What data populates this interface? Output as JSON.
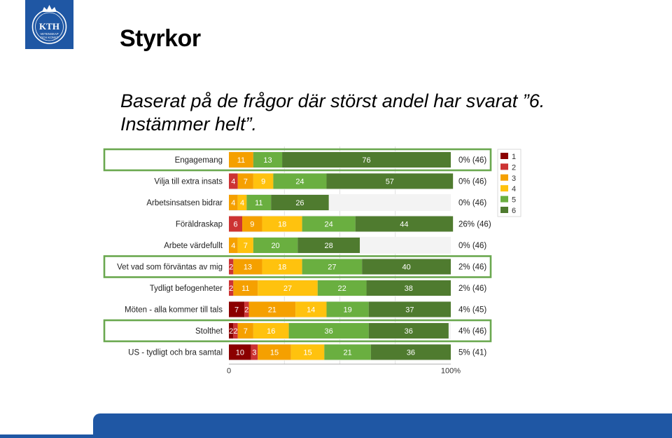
{
  "header": {
    "title": "Styrkor",
    "subtitle_line1": "Baserat på de frågor där störst andel har svarat ”6.",
    "subtitle_line2": "Instämmer helt”.",
    "logo_text": "KTH",
    "logo_subtext_1": "VETENSKAP",
    "logo_subtext_2": "OCH KONST"
  },
  "colors": {
    "brand_blue": "#1f57a4",
    "highlight_green": "#6aa84f",
    "series": [
      "#8b0000",
      "#cc3333",
      "#f5a000",
      "#ffc20e",
      "#6aaf40",
      "#4f7b2f"
    ]
  },
  "chart_data": {
    "type": "bar",
    "orientation": "horizontal",
    "stacked": true,
    "categories": [
      "Engagemang",
      "Vilja till extra insats",
      "Arbetsinsatsen bidrar",
      "Föräldraskap",
      "Arbete värdefullt",
      "Vet vad som förväntas av mig",
      "Tydligt befogenheter",
      "Möten - alla kommer till tals",
      "Stolthet",
      "US - tydligt och bra samtal"
    ],
    "series": [
      {
        "name": "1",
        "values": [
          0,
          0,
          0,
          0,
          0,
          0,
          0,
          7,
          2,
          10
        ]
      },
      {
        "name": "2",
        "values": [
          0,
          4,
          0,
          6,
          0,
          2,
          2,
          2,
          2,
          3
        ]
      },
      {
        "name": "3",
        "values": [
          11,
          7,
          4,
          9,
          4,
          13,
          11,
          21,
          7,
          15
        ]
      },
      {
        "name": "4",
        "values": [
          0,
          9,
          4,
          18,
          7,
          18,
          27,
          14,
          16,
          15
        ]
      },
      {
        "name": "5",
        "values": [
          13,
          24,
          11,
          24,
          20,
          27,
          22,
          19,
          36,
          21
        ]
      },
      {
        "name": "6",
        "values": [
          76,
          57,
          26,
          44,
          28,
          40,
          38,
          37,
          36,
          36
        ]
      }
    ],
    "right_labels": [
      "0% (46)",
      "0% (46)",
      "0% (46)",
      "26% (46)",
      "0% (46)",
      "2% (46)",
      "2% (46)",
      "4% (45)",
      "4% (46)",
      "5% (41)"
    ],
    "highlighted": [
      true,
      false,
      false,
      false,
      false,
      true,
      false,
      false,
      true,
      false
    ],
    "x_ticks": [
      "0",
      "100%"
    ],
    "xlim": [
      0,
      100
    ],
    "legend_position": "right",
    "grid": true
  }
}
